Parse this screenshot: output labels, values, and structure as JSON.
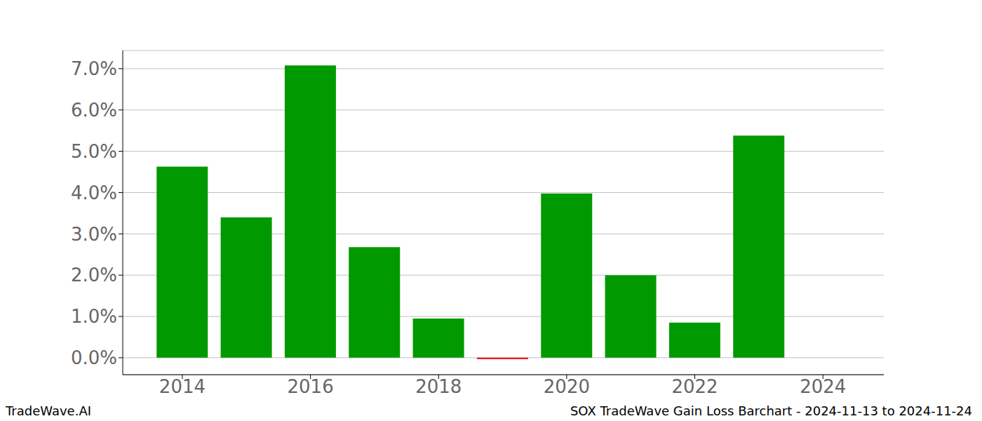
{
  "chart_data": {
    "type": "bar",
    "title": "SOX TradeWave Gain Loss Barchart - 2024-11-13 to 2024-11-24",
    "subtitle": "TradeWave.AI",
    "x": [
      2014,
      2015,
      2016,
      2017,
      2018,
      2019,
      2020,
      2021,
      2022,
      2023
    ],
    "values": [
      4.63,
      3.4,
      7.08,
      2.68,
      0.95,
      -0.03,
      3.98,
      2.0,
      0.85,
      5.38
    ],
    "colors": [
      "#009900",
      "#009900",
      "#009900",
      "#009900",
      "#009900",
      "#ee0000",
      "#009900",
      "#009900",
      "#009900",
      "#009900"
    ],
    "xlim": [
      2013.07,
      2024.95
    ],
    "xticks": [
      2014,
      2016,
      2018,
      2020,
      2022,
      2024
    ],
    "ylim": [
      -0.41,
      7.44
    ],
    "yticks": [
      {
        "value": 0,
        "label": "0.0%"
      },
      {
        "value": 1,
        "label": "1.0%"
      },
      {
        "value": 2,
        "label": "2.0%"
      },
      {
        "value": 3,
        "label": "3.0%"
      },
      {
        "value": 4,
        "label": "4.0%"
      },
      {
        "value": 5,
        "label": "5.0%"
      },
      {
        "value": 6,
        "label": "6.0%"
      },
      {
        "value": 7,
        "label": "7.0%"
      }
    ],
    "grid": true
  }
}
